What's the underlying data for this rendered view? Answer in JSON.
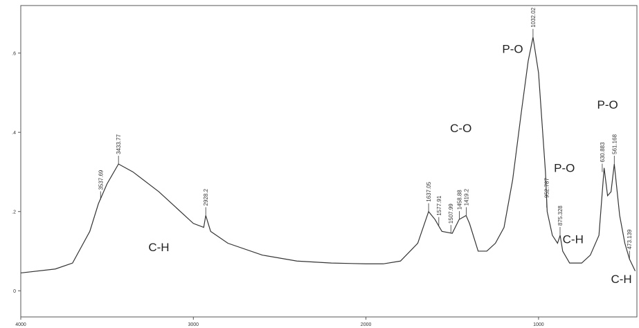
{
  "chart_data": {
    "type": "line",
    "x": [
      4000,
      3800,
      3700,
      3600,
      3550,
      3500,
      3433.77,
      3350,
      3200,
      3100,
      3000,
      2940,
      2928.2,
      2900,
      2800,
      2600,
      2400,
      2200,
      2000,
      1900,
      1800,
      1700,
      1637.05,
      1600,
      1560,
      1500,
      1460,
      1420,
      1400,
      1350,
      1300,
      1250,
      1200,
      1150,
      1100,
      1060,
      1032.02,
      1000,
      960,
      950,
      920,
      890,
      875,
      860,
      820,
      750,
      700,
      650,
      620,
      600,
      580,
      561.168,
      530,
      500,
      473.139,
      440
    ],
    "series": [
      {
        "color": "#333333",
        "values": [
          0.045,
          0.055,
          0.07,
          0.15,
          0.22,
          0.27,
          0.32,
          0.3,
          0.25,
          0.21,
          0.17,
          0.16,
          0.19,
          0.15,
          0.12,
          0.09,
          0.075,
          0.07,
          0.068,
          0.068,
          0.075,
          0.12,
          0.2,
          0.18,
          0.15,
          0.145,
          0.18,
          0.19,
          0.17,
          0.1,
          0.1,
          0.12,
          0.16,
          0.28,
          0.45,
          0.58,
          0.64,
          0.55,
          0.3,
          0.2,
          0.14,
          0.12,
          0.14,
          0.1,
          0.07,
          0.07,
          0.09,
          0.14,
          0.31,
          0.24,
          0.25,
          0.32,
          0.19,
          0.12,
          0.08,
          0.05
        ]
      }
    ],
    "xlim": [
      4000,
      430
    ],
    "ylim": [
      -0.066,
      0.72
    ],
    "xticks": [
      4000,
      3000,
      2000,
      1000
    ],
    "yticks": [
      0,
      {
        "value": 0.2,
        "label": ".2"
      },
      {
        "value": 0.4,
        "label": ".4"
      },
      {
        "value": 0.6,
        "label": ".6"
      }
    ],
    "peaks": [
      {
        "label": "3537.69",
        "x": 3537.69,
        "y": 0.23
      },
      {
        "label": "3433.77",
        "x": 3433.77,
        "y": 0.32
      },
      {
        "label": "2928.2",
        "x": 2928.2,
        "y": 0.19
      },
      {
        "label": "1637.05",
        "x": 1637.05,
        "y": 0.2
      },
      {
        "label": "1577.91",
        "x": 1577.91,
        "y": 0.165
      },
      {
        "label": "1507.99",
        "x": 1507.99,
        "y": 0.145
      },
      {
        "label": "1458.88",
        "x": 1458.88,
        "y": 0.18
      },
      {
        "label": "1419.2",
        "x": 1419.2,
        "y": 0.19
      },
      {
        "label": "1032.02",
        "x": 1032.02,
        "y": 0.64
      },
      {
        "label": "952.787",
        "x": 952.787,
        "y": 0.21
      },
      {
        "label": "875.328",
        "x": 875.328,
        "y": 0.14
      },
      {
        "label": "630.883",
        "x": 630.883,
        "y": 0.3
      },
      {
        "label": "561.168",
        "x": 561.168,
        "y": 0.32
      },
      {
        "label": "473.139",
        "x": 473.139,
        "y": 0.08
      }
    ],
    "annotations": [
      {
        "text": "C-H",
        "x": 3200,
        "y": 0.1
      },
      {
        "text": "C-O",
        "x": 1450,
        "y": 0.4
      },
      {
        "text": "P-O",
        "x": 1150,
        "y": 0.6
      },
      {
        "text": "P-O",
        "x": 850,
        "y": 0.3
      },
      {
        "text": "C-H",
        "x": 800,
        "y": 0.12
      },
      {
        "text": "P-O",
        "x": 600,
        "y": 0.46
      },
      {
        "text": "C-H",
        "x": 520,
        "y": 0.02
      }
    ]
  }
}
